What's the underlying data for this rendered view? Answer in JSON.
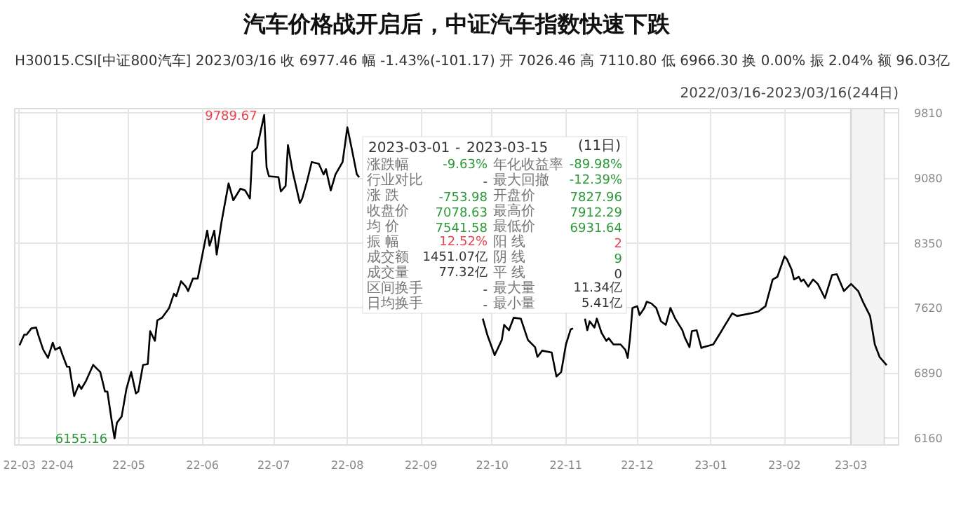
{
  "chart_data": {
    "type": "line",
    "title": "汽车价格战开启后，中证汽车指数快速下跌",
    "color": "#000000",
    "x": [
      "2022-03-16",
      "2022-03-18",
      "2022-03-19",
      "2022-03-21",
      "2022-03-23",
      "2022-03-24",
      "2022-03-26",
      "2022-03-28",
      "2022-03-30",
      "2022-03-31",
      "2022-04-02",
      "2022-04-03",
      "2022-04-05",
      "2022-04-06",
      "2022-04-08",
      "2022-04-10",
      "2022-04-11",
      "2022-04-13",
      "2022-04-16",
      "2022-04-19",
      "2022-04-21",
      "2022-04-22",
      "2022-04-24",
      "2022-04-25",
      "2022-04-26",
      "2022-04-28",
      "2022-04-30",
      "2022-05-02",
      "2022-05-04",
      "2022-05-05",
      "2022-05-07",
      "2022-05-09",
      "2022-05-10",
      "2022-05-12",
      "2022-05-13",
      "2022-05-15",
      "2022-05-18",
      "2022-05-20",
      "2022-05-21",
      "2022-05-23",
      "2022-05-25",
      "2022-05-26",
      "2022-05-28",
      "2022-05-30",
      "2022-06-01",
      "2022-06-03",
      "2022-06-04",
      "2022-06-06",
      "2022-06-07",
      "2022-06-09",
      "2022-06-12",
      "2022-06-14",
      "2022-06-17",
      "2022-06-19",
      "2022-06-21",
      "2022-06-22",
      "2022-06-24",
      "2022-06-27",
      "2022-06-28",
      "2022-06-29",
      "2022-07-03",
      "2022-07-04",
      "2022-07-06",
      "2022-07-07",
      "2022-07-09",
      "2022-07-12",
      "2022-07-13",
      "2022-07-15",
      "2022-07-17",
      "2022-07-20",
      "2022-07-22",
      "2022-07-23",
      "2022-07-25",
      "2022-07-27",
      "2022-07-30",
      "2022-08-01",
      "2022-08-03",
      "2022-08-05",
      "2022-08-06",
      "2022-08-29",
      "2022-09-27",
      "2022-09-29",
      "2022-10-02",
      "2022-10-05",
      "2022-10-06",
      "2022-10-08",
      "2022-10-10",
      "2022-10-13",
      "2022-10-16",
      "2022-10-19",
      "2022-10-20",
      "2022-10-22",
      "2022-10-26",
      "2022-10-28",
      "2022-10-30",
      "2022-11-01",
      "2022-11-03",
      "2022-11-04",
      "2022-11-07",
      "2022-11-09",
      "2022-11-10",
      "2022-11-11",
      "2022-11-13",
      "2022-11-14",
      "2022-11-16",
      "2022-11-18",
      "2022-11-19",
      "2022-11-21",
      "2022-11-24",
      "2022-11-26",
      "2022-11-27",
      "2022-11-28",
      "2022-11-29",
      "2022-12-01",
      "2022-12-02",
      "2022-12-04",
      "2022-12-05",
      "2022-12-07",
      "2022-12-09",
      "2022-12-11",
      "2022-12-13",
      "2022-12-15",
      "2022-12-17",
      "2022-12-20",
      "2022-12-21",
      "2022-12-23",
      "2022-12-24",
      "2022-12-26",
      "2022-12-28",
      "2022-12-29",
      "2023-01-02",
      "2023-01-05",
      "2023-01-07",
      "2023-01-10",
      "2023-01-12",
      "2023-01-14",
      "2023-01-18",
      "2023-01-21",
      "2023-01-24",
      "2023-01-27",
      "2023-01-29",
      "2023-02-01",
      "2023-02-02",
      "2023-02-04",
      "2023-02-05",
      "2023-02-07",
      "2023-02-08",
      "2023-02-09",
      "2023-02-11",
      "2023-02-13",
      "2023-02-15",
      "2023-02-18",
      "2023-02-21",
      "2023-02-23",
      "2023-02-26",
      "2023-03-01",
      "2023-03-04",
      "2023-03-06",
      "2023-03-09",
      "2023-03-11",
      "2023-03-13",
      "2023-03-16"
    ],
    "values": [
      7200,
      7320,
      7320,
      7390,
      7400,
      7310,
      7150,
      7060,
      7230,
      7150,
      7180,
      7100,
      6960,
      6960,
      6630,
      6760,
      6710,
      6800,
      6980,
      6900,
      6680,
      6680,
      6320,
      6155.16,
      6330,
      6400,
      6710,
      6900,
      6660,
      6680,
      6980,
      6990,
      7360,
      7250,
      7480,
      7510,
      7620,
      7780,
      7750,
      7920,
      7860,
      7810,
      7950,
      7950,
      8220,
      8490,
      8320,
      8490,
      8220,
      8580,
      9020,
      8830,
      8960,
      8940,
      8850,
      9370,
      9420,
      9789.67,
      9200,
      9100,
      9090,
      8930,
      8990,
      9450,
      9150,
      8800,
      8850,
      9040,
      9260,
      9240,
      9120,
      9180,
      8940,
      9120,
      9260,
      9650,
      9390,
      9120,
      9090,
      null,
      7500,
      7310,
      7090,
      7260,
      7430,
      7370,
      7510,
      7500,
      7260,
      7180,
      7070,
      7140,
      7120,
      6850,
      6900,
      7210,
      7380,
      7390,
      null,
      7500,
      7370,
      7470,
      7400,
      7500,
      7340,
      7250,
      7280,
      7210,
      7210,
      7150,
      7060,
      7290,
      7620,
      7640,
      7540,
      7620,
      7690,
      7670,
      7620,
      7470,
      7430,
      7620,
      7500,
      7370,
      7290,
      7180,
      7360,
      7370,
      7170,
      7180,
      7210,
      7340,
      7430,
      7560,
      7530,
      7540,
      7560,
      7580,
      7640,
      7940,
      7970,
      8200,
      8170,
      8050,
      7940,
      7970,
      7920,
      7940,
      7860,
      7940,
      7890,
      7730,
      7990,
      8000,
      7810,
      7890,
      7810,
      7690,
      7530,
      7210,
      7070,
      6977.46
    ],
    "xlim": [
      "2022-03-14",
      "2023-03-21"
    ],
    "xticks": [
      {
        "value": "2022-03-16",
        "label": "22-03"
      },
      {
        "value": "2022-04-01",
        "label": "22-04"
      },
      {
        "value": "2022-05-01",
        "label": "22-05"
      },
      {
        "value": "2022-06-01",
        "label": "22-06"
      },
      {
        "value": "2022-07-01",
        "label": "22-07"
      },
      {
        "value": "2022-08-01",
        "label": "22-08"
      },
      {
        "value": "2022-09-01",
        "label": "22-09"
      },
      {
        "value": "2022-10-01",
        "label": "22-10"
      },
      {
        "value": "2022-11-01",
        "label": "22-11"
      },
      {
        "value": "2022-12-01",
        "label": "22-12"
      },
      {
        "value": "2023-01-01",
        "label": "23-01"
      },
      {
        "value": "2023-02-01",
        "label": "23-02"
      },
      {
        "value": "2023-03-01",
        "label": "23-03"
      }
    ],
    "ylim": [
      6080,
      9860
    ],
    "yticks": [
      6160,
      6890,
      7620,
      8350,
      9080,
      9810
    ],
    "grid": true,
    "bands": [
      {
        "axis": "x",
        "from": "2023-03-01",
        "to": "2023-03-15",
        "color": "#f4f4f4"
      }
    ],
    "annotations": [
      "H30015.CSI[中证800汽车]   2023/03/16   收 6977.46   幅 -1.43%(-101.17)   开 7026.46   高 7110.80   低 6966.30   换 0.00%   振 2.04%   额 96.03亿",
      "2022/03/16-2023/03/16(244日)",
      {
        "text": "9789.67",
        "x": "2022-06-27",
        "y": 9789.67
      },
      {
        "text": "6155.16",
        "x": "2022-04-25",
        "y": 6155.16
      },
      "2023-03-01",
      "-",
      "2023-03-15",
      "(11日)",
      "涨跌幅",
      "-9.63%",
      "年化收益率",
      "-89.98%",
      "行业对比",
      "-",
      "最大回撤",
      "-12.39%",
      "涨 跌",
      "-753.98",
      "开盘价",
      "7827.96",
      "收盘价",
      "7078.63",
      "最高价",
      "7912.29",
      "均 价",
      "7541.58",
      "最低价",
      "6931.64",
      "振 幅",
      "12.52%",
      "阳 线",
      "2",
      "成交额",
      "1451.07亿",
      "阴 线",
      "9",
      "成交量",
      "77.32亿",
      "平 线",
      "0",
      "区间换手",
      "-",
      "最大量",
      "11.34亿",
      "日均换手",
      "-",
      "最小量",
      "5.41亿"
    ]
  }
}
